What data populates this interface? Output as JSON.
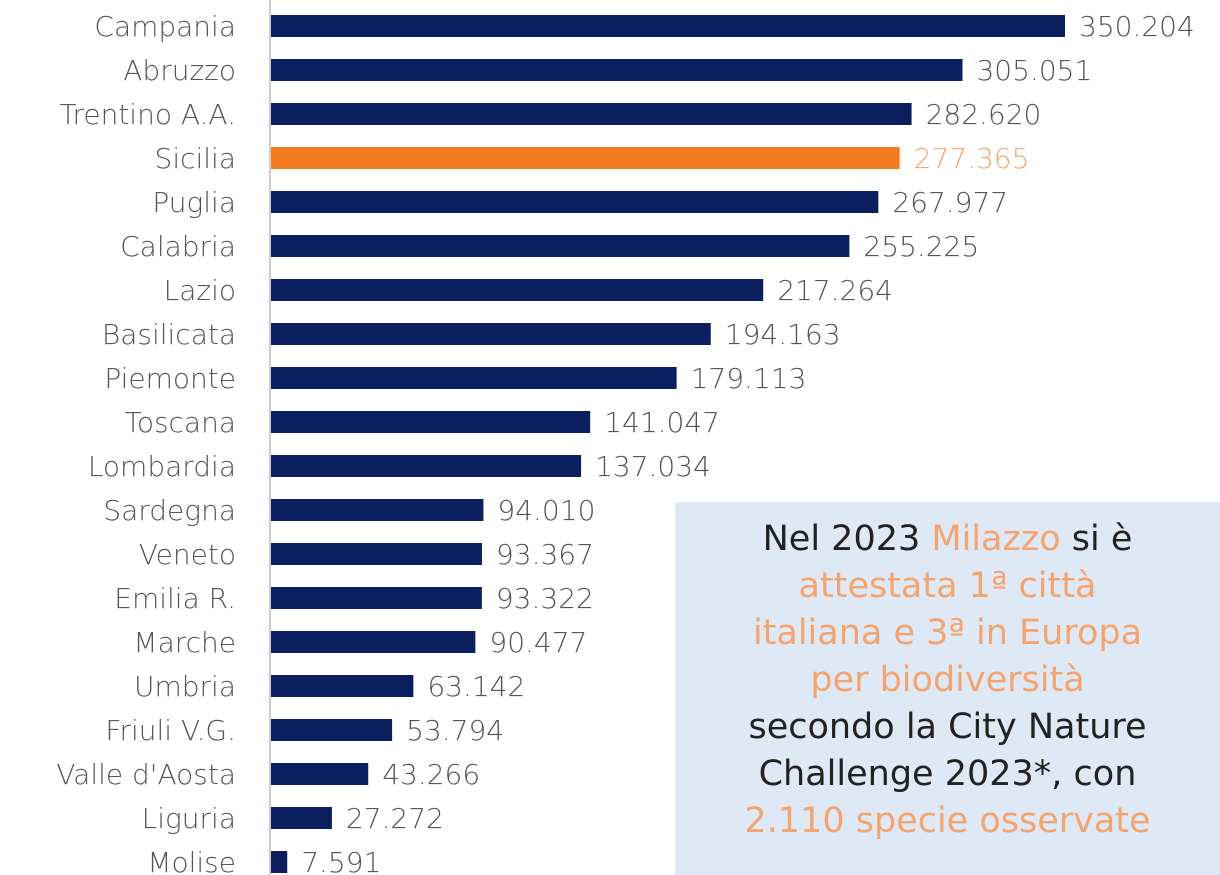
{
  "chart_data": {
    "type": "hbar",
    "categories": [
      "Campania",
      "Abruzzo",
      "Trentino A.A.",
      "Sicilia",
      "Puglia",
      "Calabria",
      "Lazio",
      "Basilicata",
      "Piemonte",
      "Toscana",
      "Lombardia",
      "Sardegna",
      "Veneto",
      "Emilia R.",
      "Marche",
      "Umbria",
      "Friuli V.G.",
      "Valle d'Aosta",
      "Liguria",
      "Molise"
    ],
    "values": [
      350204,
      305051,
      282620,
      277365,
      267977,
      255225,
      217264,
      194163,
      179113,
      141047,
      137034,
      94010,
      93367,
      93322,
      90477,
      63142,
      53794,
      43266,
      27272,
      7591
    ],
    "value_labels": [
      "350.204",
      "305.051",
      "282.620",
      "277.365",
      "267.977",
      "255.225",
      "217.264",
      "194.163",
      "179.113",
      "141.047",
      "137.034",
      "94.010",
      "93.367",
      "93.322",
      "90.477",
      "63.142",
      "53.794",
      "43.266",
      "27.272",
      "7.591"
    ],
    "colors": [
      "#0b1f5e",
      "#0b1f5e",
      "#0b1f5e",
      "#f47c20",
      "#0b1f5e",
      "#0b1f5e",
      "#0b1f5e",
      "#0b1f5e",
      "#0b1f5e",
      "#0b1f5e",
      "#0b1f5e",
      "#0b1f5e",
      "#0b1f5e",
      "#0b1f5e",
      "#0b1f5e",
      "#0b1f5e",
      "#0b1f5e",
      "#0b1f5e",
      "#0b1f5e",
      "#0b1f5e"
    ],
    "value_label_colors": [
      "#555555",
      "#555555",
      "#555555",
      "#f4a46e",
      "#555555",
      "#555555",
      "#555555",
      "#555555",
      "#555555",
      "#555555",
      "#555555",
      "#555555",
      "#555555",
      "#555555",
      "#555555",
      "#555555",
      "#555555",
      "#555555",
      "#555555",
      "#555555"
    ],
    "annotation": [
      [
        {
          "text": "Nel 2023 ",
          "color": "#222222"
        },
        {
          "text": "Milazzo",
          "color": "#f4a46e"
        },
        {
          "text": " si è",
          "color": "#222222"
        }
      ],
      [
        {
          "text": "attestata 1ª città",
          "color": "#f4a46e"
        }
      ],
      [
        {
          "text": "italiana e 3ª in Europa",
          "color": "#f4a46e"
        }
      ],
      [
        {
          "text": "per biodiversità",
          "color": "#f4a46e"
        }
      ],
      [
        {
          "text": "secondo la City Nature",
          "color": "#222222"
        }
      ],
      [
        {
          "text": "Challenge 2023*, con",
          "color": "#222222"
        }
      ],
      [
        {
          "text": "2.110 specie osservate",
          "color": "#f4a46e"
        }
      ]
    ]
  }
}
